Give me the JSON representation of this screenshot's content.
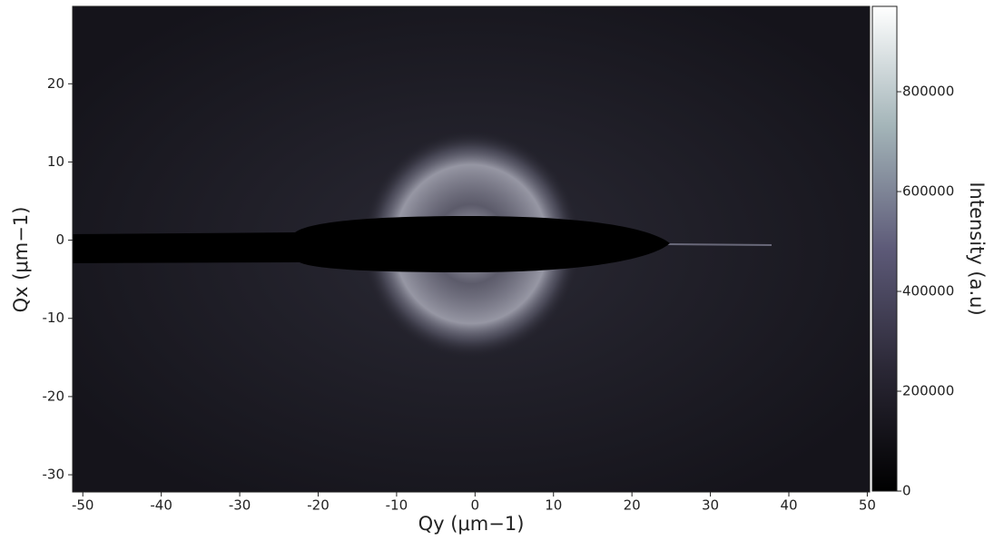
{
  "chart_data": {
    "type": "image",
    "xlabel": "Qy (μm−1)",
    "ylabel": "Qx (μm−1)",
    "xlim": [
      -51.3,
      50.3
    ],
    "xticks": [
      -50,
      -40,
      -30,
      -20,
      -10,
      0,
      10,
      20,
      30,
      40,
      50
    ],
    "ylim": [
      -32.2,
      29.9
    ],
    "yticks": [
      -30,
      -20,
      -10,
      0,
      10,
      20
    ],
    "colorbar": {
      "label": "Intensity (a.u)",
      "lim": [
        0,
        971000
      ],
      "ticks": [
        0,
        200000,
        400000,
        600000,
        800000
      ],
      "colormap": [
        "#000000",
        "#2a2735",
        "#5d5a78",
        "#a3b4b8",
        "#ffffff"
      ]
    }
  }
}
